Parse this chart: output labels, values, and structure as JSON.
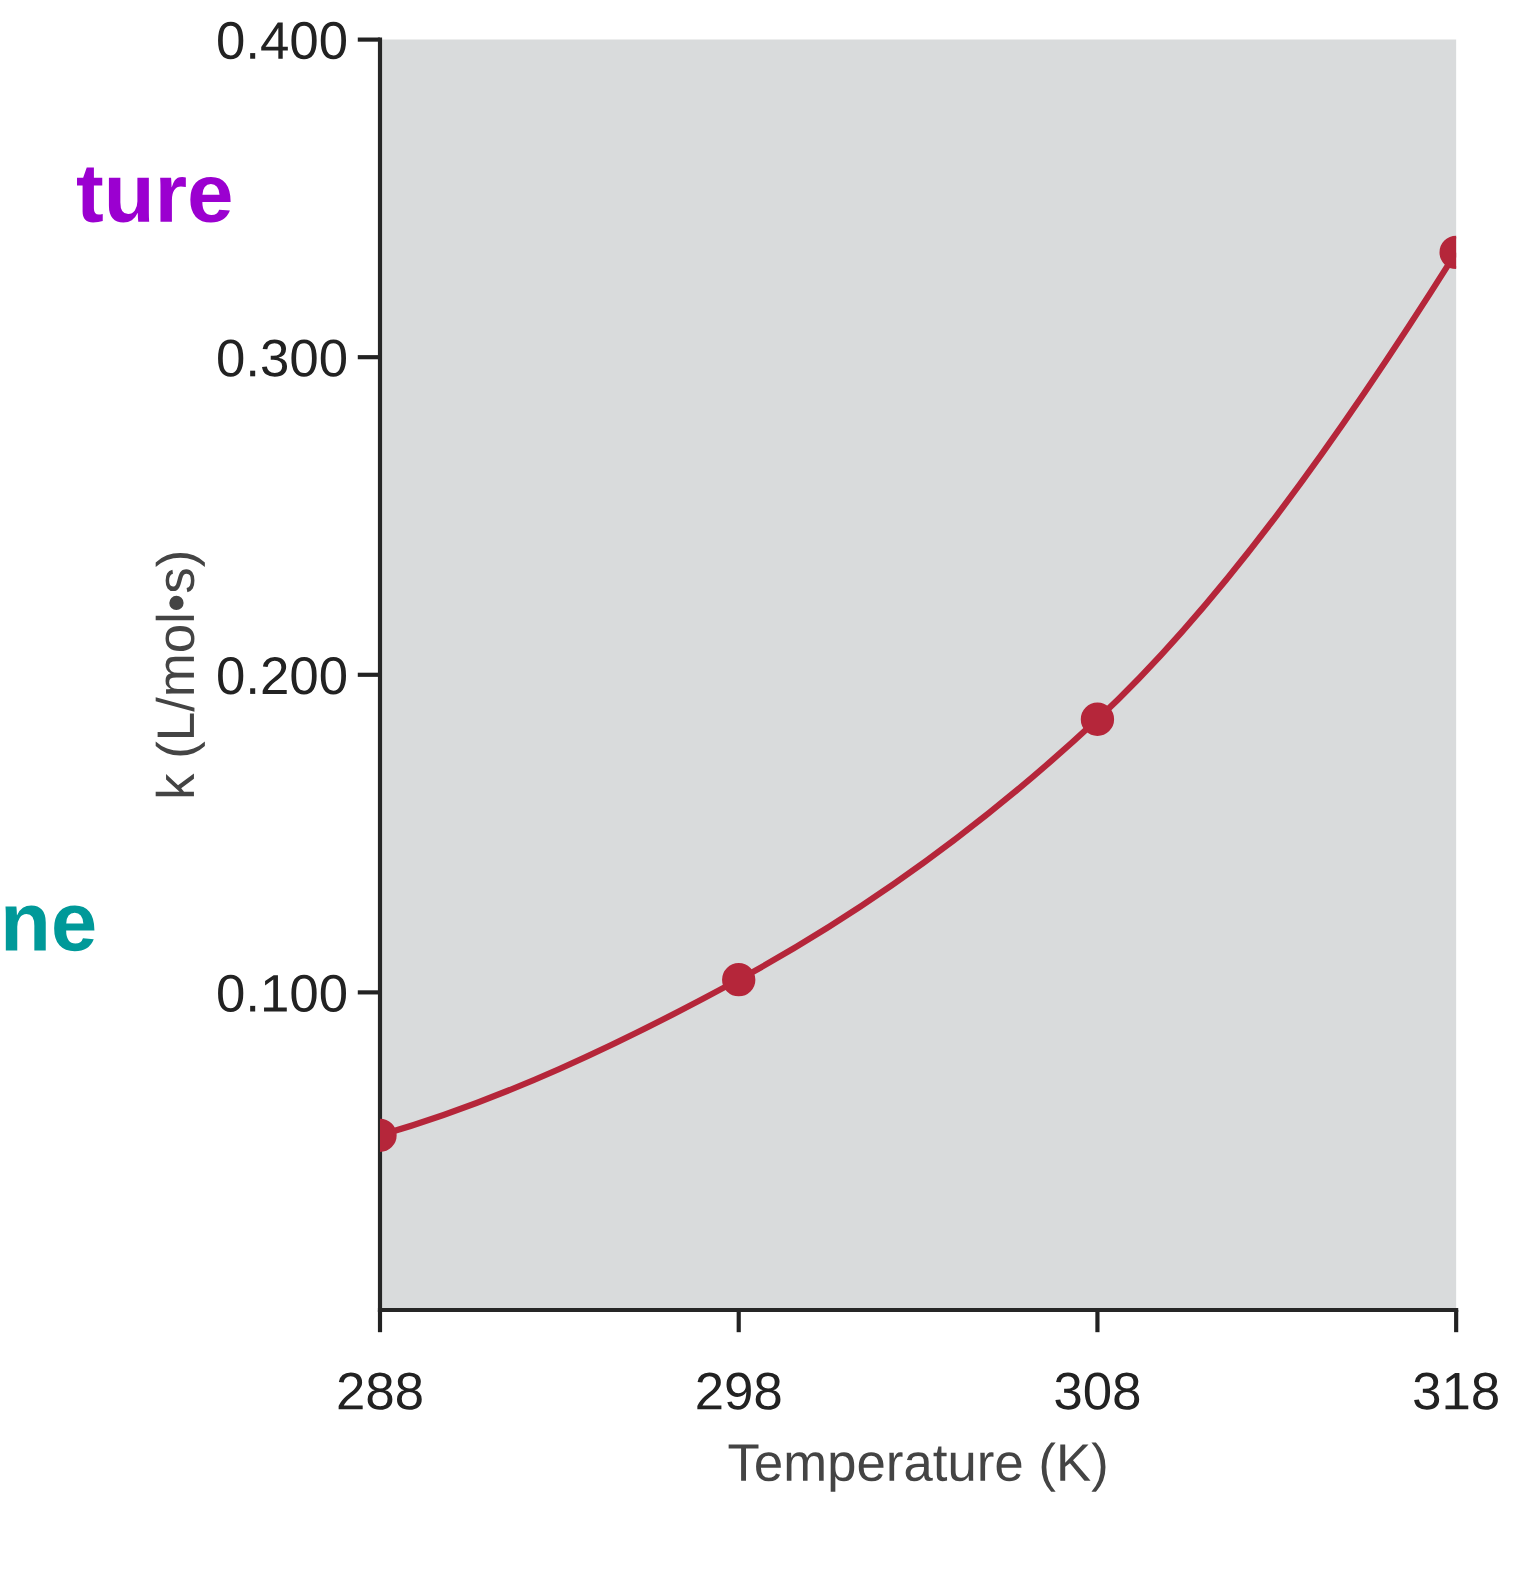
{
  "chart_data": {
    "type": "line",
    "xlabel": "Temperature (K)",
    "ylabel": "k (L/mol•s)",
    "x": [
      288,
      298,
      308,
      318
    ],
    "series": [
      {
        "color": "#b5263a",
        "values": [
          0.055,
          0.104,
          0.186,
          0.333
        ]
      }
    ],
    "marker": "circle",
    "line_style": "solid",
    "grid": false,
    "xlim": [
      288,
      318
    ],
    "xticks": [
      288,
      298,
      308,
      318
    ],
    "ylim": [
      0,
      0.4
    ],
    "yticks": [
      {
        "value": 0.1,
        "label": "0.100"
      },
      {
        "value": 0.2,
        "label": "0.200"
      },
      {
        "value": 0.3,
        "label": "0.300"
      },
      {
        "value": 0.4,
        "label": "0.400"
      }
    ],
    "annotations": [
      "ture",
      "ne"
    ]
  }
}
